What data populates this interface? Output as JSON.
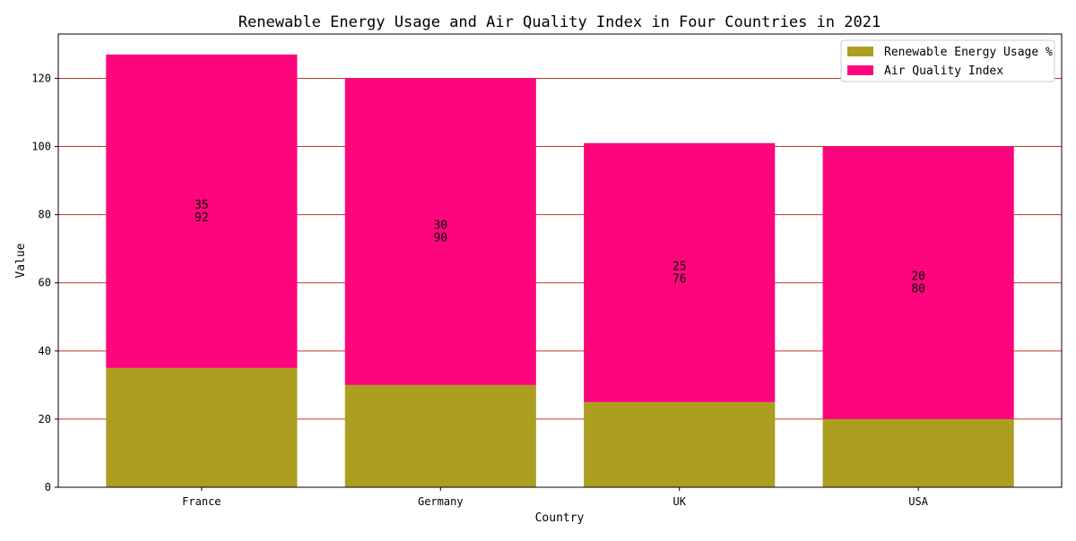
{
  "chart_data": {
    "type": "bar",
    "stacked": true,
    "title": "Renewable Energy Usage and Air Quality Index in Four Countries in 2021",
    "xlabel": "Country",
    "ylabel": "Value",
    "categories": [
      "France",
      "Germany",
      "UK",
      "USA"
    ],
    "series": [
      {
        "name": "Renewable Energy Usage %",
        "values": [
          35,
          30,
          25,
          20
        ],
        "color": "#ac9e20"
      },
      {
        "name": "Air Quality Index",
        "values": [
          92,
          90,
          76,
          80
        ],
        "color": "#fc057d"
      }
    ],
    "ylim": [
      0,
      133
    ],
    "yticks": [
      0,
      20,
      40,
      60,
      80,
      100,
      120
    ],
    "grid": true,
    "grid_axis": "y",
    "grid_color": "#c0391b",
    "legend_position": "top-right"
  }
}
